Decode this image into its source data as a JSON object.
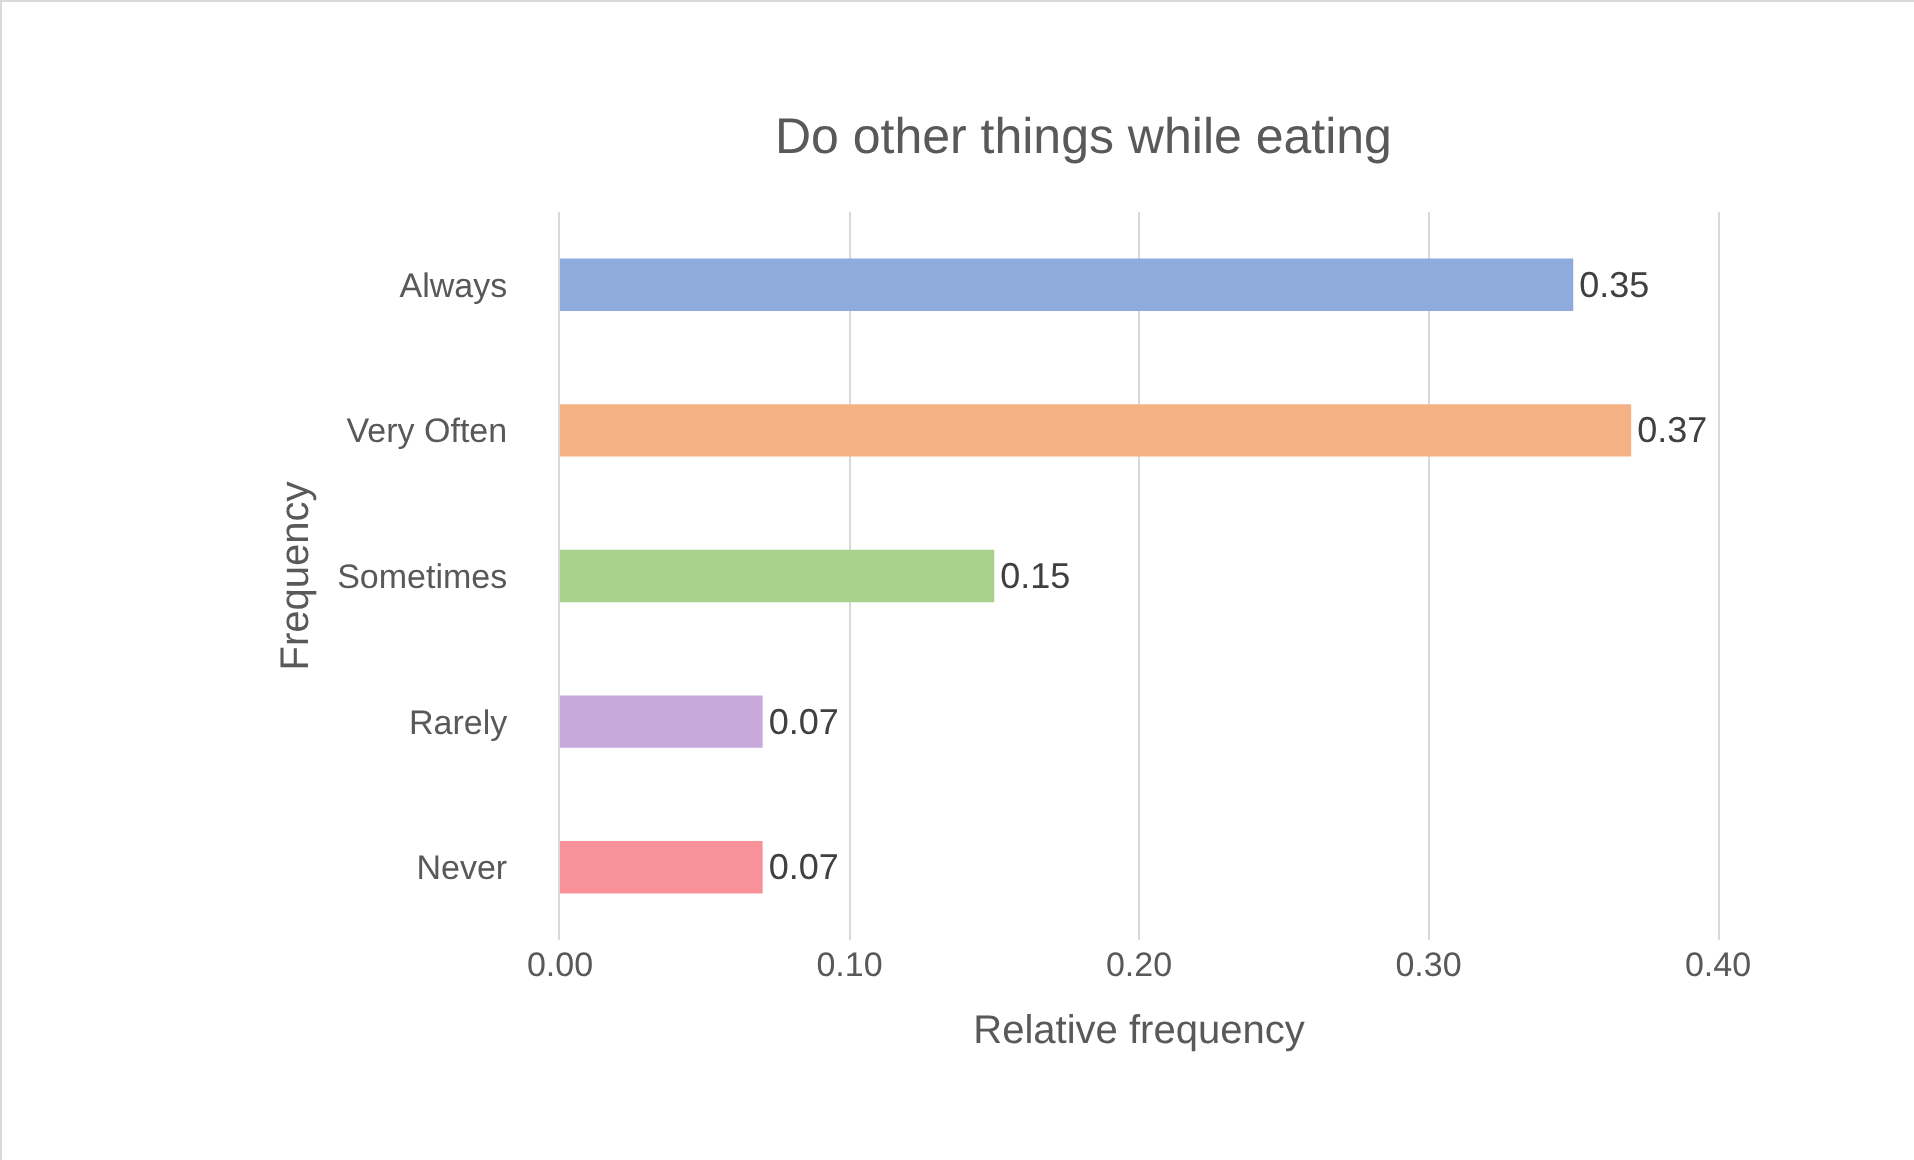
{
  "chart_data": {
    "type": "bar",
    "orientation": "horizontal",
    "title": "Do other things while eating",
    "xlabel": "Relative frequency",
    "ylabel": "Frequency",
    "categories": [
      "Always",
      "Very Often",
      "Sometimes",
      "Rarely",
      "Never"
    ],
    "values": [
      0.35,
      0.37,
      0.15,
      0.07,
      0.07
    ],
    "colors": [
      "#8faadc",
      "#f4b183",
      "#a9d18e",
      "#c9a9dc",
      "#f8919a"
    ],
    "xlim": [
      0,
      0.4
    ],
    "xticks": [
      {
        "value": 0,
        "label": "0.00"
      },
      {
        "value": 0.1,
        "label": "0.10"
      },
      {
        "value": 0.2,
        "label": "0.20"
      },
      {
        "value": 0.3,
        "label": "0.30"
      },
      {
        "value": 0.4,
        "label": "0.40"
      }
    ],
    "grid": "x",
    "data_labels": true
  }
}
